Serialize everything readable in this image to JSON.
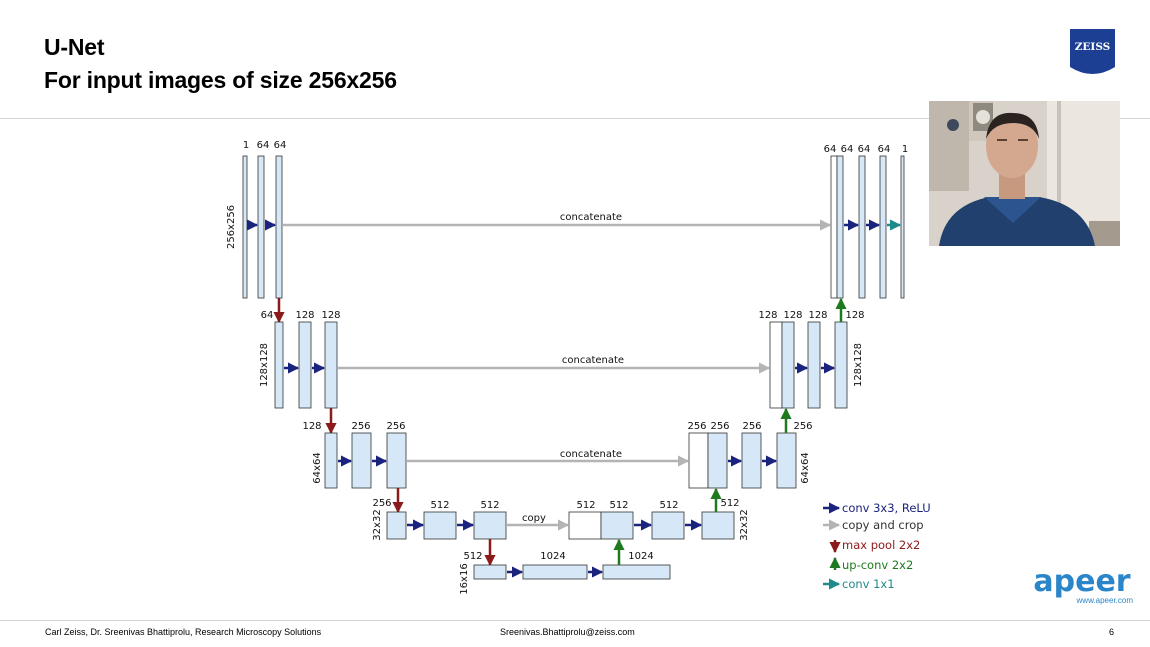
{
  "slide": {
    "title_line1": "U-Net",
    "title_line2": "For input images of size 256x256",
    "page_number": "6"
  },
  "logo": {
    "text": "ZEISS"
  },
  "footer": {
    "left": "Carl Zeiss, Dr. Sreenivas Bhattiprolu, Research Microscopy Solutions",
    "center": "Sreenivas.Bhattiprolu@zeiss.com"
  },
  "apeer": {
    "wordmark": "apeer",
    "url": "www.apeer.com"
  },
  "diagram": {
    "level1": {
      "ch_in": "1",
      "ch_a": "64",
      "ch_b": "64",
      "size": "256x256",
      "up_a": "64",
      "up_b": "64",
      "up_c": "64",
      "up_d": "64",
      "out": "1"
    },
    "level2": {
      "pool_in": "64",
      "ch_a": "128",
      "ch_b": "128",
      "size": "128x128",
      "up_a": "128",
      "up_b": "128",
      "up_c": "128",
      "up_d": "128"
    },
    "level3": {
      "pool_in": "128",
      "ch_a": "256",
      "ch_b": "256",
      "size": "64x64",
      "up_a": "256",
      "up_b": "256",
      "up_c": "256",
      "up_d": "256"
    },
    "level4": {
      "pool_in": "256",
      "ch_a": "512",
      "ch_b": "512",
      "size": "32x32",
      "up_a": "512",
      "up_b": "512",
      "up_c": "512",
      "up_d": "512"
    },
    "level5": {
      "pool_in": "512",
      "ch_a": "1024",
      "ch_b": "1024",
      "size": "16x16"
    },
    "concat_label": "concatenate",
    "copy_label": "copy",
    "legend": {
      "conv": "conv 3x3, ReLU",
      "copy": "copy and crop",
      "pool": "max pool 2x2",
      "upconv": "up-conv 2x2",
      "conv1x1": "conv 1x1"
    }
  },
  "colors": {
    "block_fill": "#d6e8f7",
    "conv_arrow": "#1a237e",
    "copy_arrow": "#b4b4b4",
    "pool_arrow": "#8b1a1a",
    "upconv_arrow": "#1e7a1e",
    "conv1x1_arrow": "#1e8a8a",
    "zeiss_blue": "#1c3f94",
    "apeer_blue": "#2a86c9"
  }
}
